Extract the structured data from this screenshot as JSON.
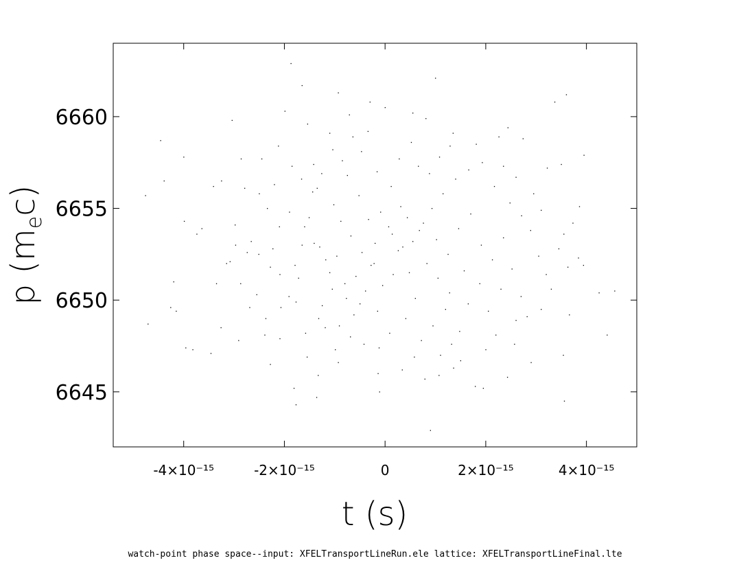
{
  "caption": "watch-point phase space--input: XFELTransportLineRun.ele  lattice: XFELTransportLineFinal.lte",
  "chart_data": {
    "type": "scatter",
    "title": "",
    "xlabel": "t (s)",
    "ylabel": "p (m",
    "ylabel_sub": "e",
    "ylabel_tail": "c)",
    "xlim": [
      -5.4e-15,
      5e-15
    ],
    "ylim": [
      6642,
      6664
    ],
    "xticks": [
      {
        "value": -4e-15,
        "label": "-4×10⁻¹⁵"
      },
      {
        "value": -2e-15,
        "label": "-2×10⁻¹⁵"
      },
      {
        "value": 0,
        "label": "0"
      },
      {
        "value": 2e-15,
        "label": "2×10⁻¹⁵"
      },
      {
        "value": 4e-15,
        "label": "4×10⁻¹⁵"
      }
    ],
    "yticks": [
      {
        "value": 6645,
        "label": "6645"
      },
      {
        "value": 6650,
        "label": "6650"
      },
      {
        "value": 6655,
        "label": "6655"
      },
      {
        "value": 6660,
        "label": "6660"
      }
    ],
    "grid": false,
    "point_color": "#000000",
    "points": [
      [
        -4.76e-15,
        6655.7
      ],
      [
        -4.46e-15,
        6658.7
      ],
      [
        -4.39e-15,
        6656.5
      ],
      [
        -4e-15,
        6657.8
      ],
      [
        -3.99e-15,
        6654.3
      ],
      [
        -4.2e-15,
        6651.0
      ],
      [
        -4.26e-15,
        6649.6
      ],
      [
        -4.15e-15,
        6649.4
      ],
      [
        -4.71e-15,
        6648.7
      ],
      [
        -3.96e-15,
        6647.4
      ],
      [
        -3.82e-15,
        6647.3
      ],
      [
        -3.46e-15,
        6647.1
      ],
      [
        -3.26e-15,
        6648.5
      ],
      [
        -3.74e-15,
        6653.6
      ],
      [
        -3.64e-15,
        6653.9
      ],
      [
        -3.41e-15,
        6656.2
      ],
      [
        -3.25e-15,
        6656.5
      ],
      [
        -3.04e-15,
        6659.8
      ],
      [
        -2.86e-15,
        6657.7
      ],
      [
        -2.79e-15,
        6656.1
      ],
      [
        -3.08e-15,
        6652.1
      ],
      [
        -2.97e-15,
        6653.0
      ],
      [
        -2.74e-15,
        6652.6
      ],
      [
        -2.87e-15,
        6650.9
      ],
      [
        -2.69e-15,
        6649.6
      ],
      [
        -2.91e-15,
        6647.8
      ],
      [
        -2.39e-15,
        6648.1
      ],
      [
        -2.28e-15,
        6646.5
      ],
      [
        -2.09e-15,
        6647.9
      ],
      [
        -1.81e-15,
        6645.2
      ],
      [
        -1.77e-15,
        6644.3
      ],
      [
        -1.36e-15,
        6644.7
      ],
      [
        -2.12e-15,
        6658.4
      ],
      [
        -1.87e-15,
        6662.9
      ],
      [
        -1.65e-15,
        6661.7
      ],
      [
        -1.99e-15,
        6660.3
      ],
      [
        -1.54e-15,
        6659.6
      ],
      [
        -1.1e-15,
        6659.1
      ],
      [
        -9.3e-16,
        6661.3
      ],
      [
        -7.1e-16,
        6660.1
      ],
      [
        -3e-16,
        6660.8
      ],
      [
        0.0,
        6660.5
      ],
      [
        5.5e-16,
        6660.2
      ],
      [
        1e-15,
        6662.1
      ],
      [
        8.1e-16,
        6659.9
      ],
      [
        1.35e-15,
        6659.1
      ],
      [
        1.81e-15,
        6658.5
      ],
      [
        2.26e-15,
        6658.9
      ],
      [
        2.44e-15,
        6659.4
      ],
      [
        2.74e-15,
        6658.8
      ],
      [
        3.37e-15,
        6660.8
      ],
      [
        3.6e-15,
        6661.2
      ],
      [
        3.22e-15,
        6657.2
      ],
      [
        3.5e-15,
        6657.4
      ],
      [
        3.95e-15,
        6657.9
      ],
      [
        3.86e-15,
        6655.1
      ],
      [
        3.73e-15,
        6654.2
      ],
      [
        3.84e-15,
        6652.3
      ],
      [
        3.94e-15,
        6651.9
      ],
      [
        3.63e-15,
        6651.8
      ],
      [
        4.25e-15,
        6650.4
      ],
      [
        4.56e-15,
        6650.5
      ],
      [
        4.41e-15,
        6648.1
      ],
      [
        3.66e-15,
        6649.2
      ],
      [
        3.54e-15,
        6647.0
      ],
      [
        3.56e-15,
        6644.5
      ],
      [
        2.9e-15,
        6646.6
      ],
      [
        2.57e-15,
        6647.6
      ],
      [
        2.43e-15,
        6645.8
      ],
      [
        1.95e-15,
        6645.2
      ],
      [
        1.79e-15,
        6645.3
      ],
      [
        1.07e-15,
        6645.9
      ],
      [
        7.9e-16,
        6645.7
      ],
      [
        1.36e-15,
        6646.3
      ],
      [
        9e-16,
        6642.9
      ],
      [
        -1.1e-16,
        6645.0
      ],
      [
        -1.4e-16,
        6646.0
      ],
      [
        -9.3e-16,
        6646.6
      ],
      [
        -1.33e-15,
        6645.9
      ],
      [
        -1.55e-15,
        6646.9
      ],
      [
        -2.5e-15,
        6655.8
      ],
      [
        -2.34e-15,
        6655.0
      ],
      [
        -2.1e-15,
        6654.0
      ],
      [
        -2.23e-15,
        6652.8
      ],
      [
        -2.09e-15,
        6651.4
      ],
      [
        -1.91e-15,
        6650.2
      ],
      [
        -2.07e-15,
        6649.6
      ],
      [
        -1.77e-15,
        6649.9
      ],
      [
        -1.79e-15,
        6651.9
      ],
      [
        -1.65e-15,
        6653.0
      ],
      [
        -1.51e-15,
        6654.5
      ],
      [
        -1.35e-15,
        6656.1
      ],
      [
        -1.26e-15,
        6656.9
      ],
      [
        -1.18e-15,
        6652.2
      ],
      [
        -1.05e-15,
        6650.6
      ],
      [
        -1.25e-15,
        6649.7
      ],
      [
        -9.1e-16,
        6648.6
      ],
      [
        -6.2e-16,
        6649.2
      ],
      [
        -3.9e-16,
        6650.5
      ],
      [
        -2.2e-16,
        6652.0
      ],
      [
        -2e-16,
        6653.1
      ],
      [
        -3.3e-16,
        6654.4
      ],
      [
        -5.2e-16,
        6655.7
      ],
      [
        -7.5e-16,
        6656.8
      ],
      [
        -8.5e-16,
        6657.6
      ],
      [
        -4.7e-16,
        6658.1
      ],
      [
        -1.6e-16,
        6657.0
      ],
      [
        1.2e-16,
        6656.2
      ],
      [
        3.1e-16,
        6655.1
      ],
      [
        7e-17,
        6654.0
      ],
      [
        2.6e-16,
        6652.7
      ],
      [
        4.8e-16,
        6651.5
      ],
      [
        6e-16,
        6650.1
      ],
      [
        4.1e-16,
        6649.0
      ],
      [
        9e-17,
        6648.2
      ],
      [
        -1.2e-16,
        6647.4
      ],
      [
        7.2e-16,
        6647.8
      ],
      [
        9.5e-16,
        6648.6
      ],
      [
        1.2e-15,
        6649.5
      ],
      [
        1.32e-15,
        6647.6
      ],
      [
        1.48e-15,
        6648.3
      ],
      [
        1.65e-15,
        6649.8
      ],
      [
        1.88e-15,
        6650.9
      ],
      [
        2.05e-15,
        6649.4
      ],
      [
        2.3e-15,
        6650.6
      ],
      [
        2.52e-15,
        6651.7
      ],
      [
        2.7e-15,
        6650.2
      ],
      [
        2.82e-15,
        6649.1
      ],
      [
        3.05e-15,
        6652.4
      ],
      [
        2.89e-15,
        6653.8
      ],
      [
        2.71e-15,
        6654.6
      ],
      [
        2.48e-15,
        6655.3
      ],
      [
        2.17e-15,
        6656.2
      ],
      [
        1.93e-15,
        6657.5
      ],
      [
        1.66e-15,
        6657.1
      ],
      [
        1.4e-15,
        6656.6
      ],
      [
        1.15e-15,
        6655.8
      ],
      [
        9.3e-16,
        6655.0
      ],
      [
        7.6e-16,
        6654.2
      ],
      [
        1.02e-15,
        6653.3
      ],
      [
        1.25e-15,
        6652.5
      ],
      [
        1.46e-15,
        6653.9
      ],
      [
        1.7e-15,
        6654.7
      ],
      [
        1.91e-15,
        6653.0
      ],
      [
        2.13e-15,
        6652.2
      ],
      [
        2.35e-15,
        6653.4
      ],
      [
        5.5e-16,
        6653.2
      ],
      [
        3.5e-16,
        6652.9
      ],
      [
        1.6e-16,
        6651.4
      ],
      [
        -5e-17,
        6650.8
      ],
      [
        -2.8e-16,
        6651.9
      ],
      [
        -4.6e-16,
        6652.6
      ],
      [
        -6.8e-16,
        6653.5
      ],
      [
        -8.8e-16,
        6654.3
      ],
      [
        -1.02e-15,
        6655.2
      ],
      [
        -1.44e-15,
        6655.9
      ],
      [
        -1.66e-15,
        6656.6
      ],
      [
        -1.85e-15,
        6657.3
      ],
      [
        -2.45e-15,
        6657.7
      ],
      [
        -2.66e-15,
        6653.2
      ],
      [
        -2.98e-15,
        6654.1
      ],
      [
        -3.15e-15,
        6652.0
      ],
      [
        -3.35e-15,
        6650.9
      ],
      [
        -2.55e-15,
        6650.3
      ],
      [
        -2.37e-15,
        6649.0
      ],
      [
        -1.58e-15,
        6648.2
      ],
      [
        -1.32e-15,
        6649.0
      ],
      [
        -7.7e-16,
        6650.1
      ],
      [
        -5.8e-16,
        6651.3
      ],
      [
        -9.6e-16,
        6652.4
      ],
      [
        -1.41e-15,
        6653.1
      ],
      [
        -1.72e-15,
        6651.2
      ],
      [
        -2.28e-15,
        6651.8
      ],
      [
        -2.51e-15,
        6652.5
      ],
      [
        2.8e-16,
        6657.7
      ],
      [
        5.2e-16,
        6658.6
      ],
      [
        6.6e-16,
        6657.3
      ],
      [
        8.8e-16,
        6656.9
      ],
      [
        1.08e-15,
        6657.8
      ],
      [
        1.29e-15,
        6658.4
      ],
      [
        -3.4e-16,
        6659.2
      ],
      [
        -6.4e-16,
        6658.9
      ],
      [
        -1.04e-15,
        6658.2
      ],
      [
        -1.42e-15,
        6657.4
      ],
      [
        -4.2e-16,
        6647.6
      ],
      [
        -6.9e-16,
        6648.0
      ],
      [
        -9.9e-16,
        6647.3
      ],
      [
        -1.19e-15,
        6648.5
      ],
      [
        3.4e-16,
        6646.2
      ],
      [
        5.8e-16,
        6646.9
      ],
      [
        1.1e-15,
        6647.0
      ],
      [
        1.5e-15,
        6646.7
      ],
      [
        2e-15,
        6647.3
      ],
      [
        2.2e-15,
        6648.1
      ],
      [
        2.6e-15,
        6648.9
      ],
      [
        3.1e-15,
        6649.5
      ],
      [
        3.3e-15,
        6650.6
      ],
      [
        3.2e-15,
        6651.4
      ],
      [
        3.45e-15,
        6652.8
      ],
      [
        3.55e-15,
        6653.6
      ],
      [
        3.1e-15,
        6654.9
      ],
      [
        2.95e-15,
        6655.8
      ],
      [
        2.6e-15,
        6656.7
      ],
      [
        2.35e-15,
        6657.3
      ],
      [
        1.4e-16,
        6653.6
      ],
      [
        -9e-17,
        6654.8
      ],
      [
        4.4e-16,
        6654.5
      ],
      [
        6.8e-16,
        6653.8
      ],
      [
        8.3e-16,
        6652.0
      ],
      [
        1.05e-15,
        6651.2
      ],
      [
        1.28e-15,
        6650.4
      ],
      [
        1.57e-15,
        6651.6
      ],
      [
        -1.5e-16,
        6649.4
      ],
      [
        -5e-16,
        6649.8
      ],
      [
        -8e-16,
        6650.9
      ],
      [
        -1.1e-15,
        6651.5
      ],
      [
        -1.3e-15,
        6652.9
      ],
      [
        -1.6e-15,
        6654.0
      ],
      [
        -1.9e-15,
        6654.8
      ],
      [
        -2.2e-15,
        6656.3
      ]
    ]
  }
}
